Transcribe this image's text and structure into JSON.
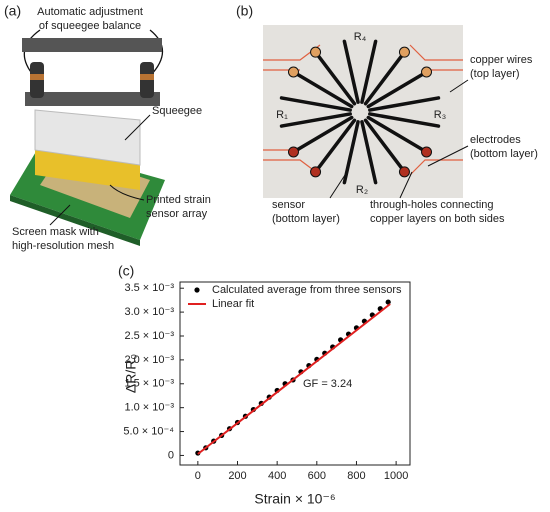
{
  "panel_a": {
    "label": "(a)",
    "texts": [
      "Automatic adjustment",
      "of squeegee balance",
      "Squeegee",
      "Printed strain",
      "sensor array",
      "Screen mask with",
      "high-resolution mesh"
    ]
  },
  "panel_b": {
    "label": "(b)",
    "texts": [
      "R₄",
      "R₁",
      "R₃",
      "R₂",
      "copper wires",
      "(top layer)",
      "electrodes",
      "(bottom layer)",
      "sensor",
      "(bottom layer)",
      "through-holes connecting",
      "copper layers on both sides"
    ]
  },
  "chart_data": {
    "type": "scatter",
    "label": "(c)",
    "xlabel": "Strain × 10⁻⁶",
    "ylabel": "ΔR/R₀",
    "annotation": "GF = 3.24",
    "legend": "upper left",
    "xlim": [
      -90,
      1070
    ],
    "ylim": [
      -0.0002,
      0.00363
    ],
    "xticks": [
      0,
      200,
      400,
      600,
      800,
      1000
    ],
    "yticks": [
      0,
      {
        "value": 0.0005,
        "label": "5.0 × 10⁻⁴"
      },
      {
        "value": 0.001,
        "label": "1.0 × 10⁻³"
      },
      {
        "value": 0.0015,
        "label": "1.5 × 10⁻³"
      },
      {
        "value": 0.002,
        "label": "2.0 × 10⁻³"
      },
      {
        "value": 0.0025,
        "label": "2.5 × 10⁻³"
      },
      {
        "value": 0.003,
        "label": "3.0 × 10⁻³"
      },
      {
        "value": 0.0035,
        "label": "3.5 × 10⁻³"
      }
    ],
    "series": [
      {
        "name": "Calculated average from three sensors",
        "type": "scatter",
        "color": "#000000",
        "x": [
          0,
          40,
          80,
          120,
          160,
          200,
          240,
          280,
          320,
          360,
          400,
          440,
          480,
          520,
          560,
          600,
          640,
          680,
          720,
          760,
          800,
          840,
          880,
          920,
          960
        ],
        "values": [
          5e-05,
          0.00016,
          0.0003,
          0.00042,
          0.00056,
          0.00069,
          0.00082,
          0.00096,
          0.00109,
          0.00122,
          0.00136,
          0.0015,
          0.00158,
          0.00175,
          0.00188,
          0.00201,
          0.00214,
          0.00227,
          0.00242,
          0.00254,
          0.00267,
          0.00281,
          0.00294,
          0.00307,
          0.00321
        ]
      },
      {
        "name": "Linear fit",
        "type": "line",
        "color": "#e02020",
        "x": [
          0,
          970
        ],
        "values": [
          3e-05,
          0.00317
        ]
      }
    ]
  }
}
